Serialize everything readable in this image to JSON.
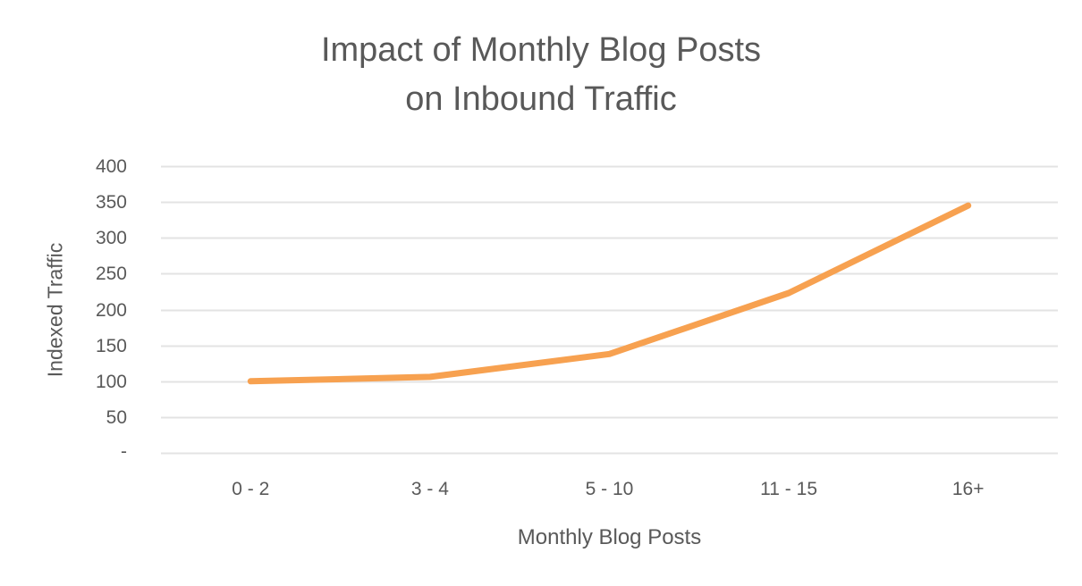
{
  "chart_data": {
    "type": "line",
    "title": "Impact of Monthly Blog Posts on Inbound Traffic",
    "title_lines": [
      "Impact of Monthly Blog Posts",
      "on Inbound Traffic"
    ],
    "xlabel": "Monthly Blog Posts",
    "ylabel": "Indexed Traffic",
    "categories": [
      "0 - 2",
      "3 - 4",
      "5 - 10",
      "11 - 15",
      "16+"
    ],
    "series": [
      {
        "name": "Indexed Traffic",
        "color": "#F7A150",
        "values": [
          100,
          106,
          138,
          223,
          345
        ]
      }
    ],
    "yticks": [
      "-",
      "50",
      "100",
      "150",
      "200",
      "250",
      "300",
      "350",
      "400"
    ],
    "ylim": [
      0,
      400
    ],
    "grid": true,
    "legend": "none",
    "colors": {
      "line": "#F7A150",
      "grid": "#E3E3E3",
      "text": "#595959"
    }
  }
}
